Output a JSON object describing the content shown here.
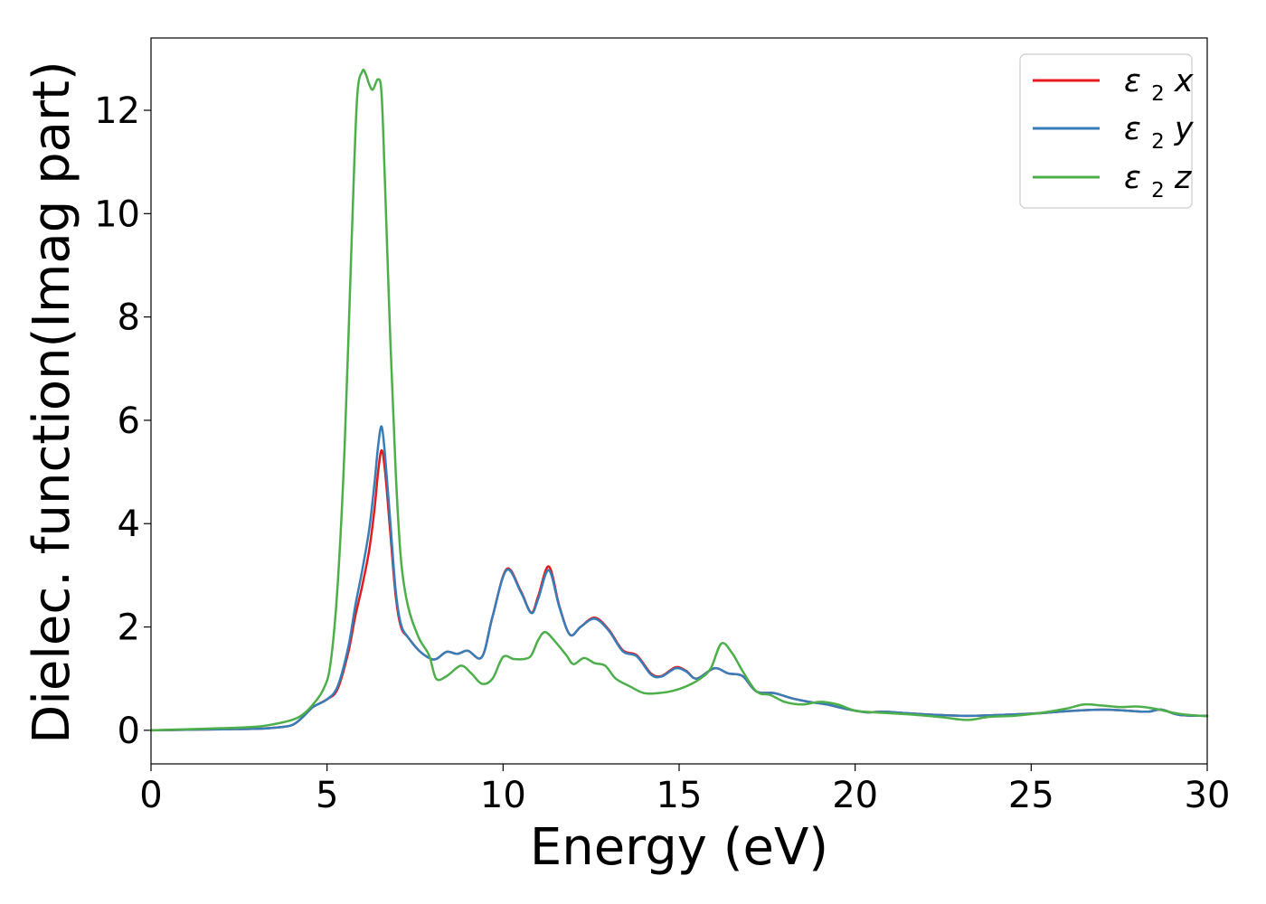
{
  "chart_data": {
    "type": "line",
    "title": "",
    "xlabel": "Energy (eV)",
    "ylabel": "Dielec. function(Imag part)",
    "xlim": [
      0,
      30
    ],
    "ylim": [
      -0.65,
      13.4
    ],
    "xticks": [
      0,
      5,
      10,
      15,
      20,
      25,
      30
    ],
    "yticks": [
      0,
      2,
      4,
      6,
      8,
      10,
      12
    ],
    "xtick_labels": [
      "0",
      "5",
      "10",
      "15",
      "20",
      "25",
      "30"
    ],
    "ytick_labels": [
      "0",
      "2",
      "4",
      "6",
      "8",
      "10",
      "12"
    ],
    "grid": false,
    "legend_position": "top-right",
    "series": [
      {
        "name": "ε2x",
        "legend_main": "ε",
        "legend_sub": "2",
        "legend_suffix": "x",
        "color": "#e41a1c",
        "x": [
          0,
          1,
          2,
          3,
          3.5,
          4,
          4.3,
          4.6,
          5,
          5.3,
          5.6,
          5.8,
          6.0,
          6.2,
          6.35,
          6.45,
          6.55,
          6.65,
          6.8,
          6.95,
          7.1,
          7.3,
          7.6,
          7.9,
          8.1,
          8.4,
          8.7,
          9.0,
          9.4,
          9.7,
          10.1,
          10.5,
          10.8,
          11.0,
          11.3,
          11.6,
          11.9,
          12.2,
          12.6,
          13.0,
          13.4,
          13.8,
          14.2,
          14.5,
          14.9,
          15.2,
          15.5,
          16.0,
          16.4,
          16.8,
          17.2,
          17.7,
          18.2,
          18.7,
          19.2,
          19.7,
          20.3,
          20.8,
          21.5,
          22.3,
          23.2,
          24.2,
          25.2,
          26.0,
          27.0,
          27.7,
          28.3,
          28.7,
          29.2,
          30.0
        ],
        "y": [
          0.0,
          0.01,
          0.02,
          0.03,
          0.05,
          0.1,
          0.25,
          0.45,
          0.6,
          0.8,
          1.5,
          2.2,
          2.8,
          3.5,
          4.3,
          5.0,
          5.42,
          5.0,
          3.8,
          2.6,
          2.0,
          1.8,
          1.55,
          1.4,
          1.38,
          1.52,
          1.48,
          1.54,
          1.42,
          2.2,
          3.12,
          2.7,
          2.28,
          2.6,
          3.17,
          2.4,
          1.85,
          2.0,
          2.18,
          1.95,
          1.55,
          1.45,
          1.1,
          1.05,
          1.22,
          1.15,
          1.0,
          1.2,
          1.1,
          1.05,
          0.75,
          0.72,
          0.62,
          0.55,
          0.5,
          0.42,
          0.35,
          0.36,
          0.33,
          0.3,
          0.28,
          0.3,
          0.33,
          0.37,
          0.4,
          0.38,
          0.36,
          0.4,
          0.3,
          0.28
        ]
      },
      {
        "name": "ε2y",
        "legend_main": "ε",
        "legend_sub": "2",
        "legend_suffix": "y",
        "color": "#377eb8",
        "x": [
          0,
          1,
          2,
          3,
          3.5,
          4,
          4.3,
          4.6,
          5,
          5.3,
          5.6,
          5.8,
          6.0,
          6.2,
          6.35,
          6.45,
          6.55,
          6.65,
          6.8,
          6.95,
          7.1,
          7.3,
          7.6,
          7.9,
          8.1,
          8.4,
          8.7,
          9.0,
          9.4,
          9.7,
          10.1,
          10.5,
          10.8,
          11.0,
          11.3,
          11.6,
          11.9,
          12.2,
          12.6,
          13.0,
          13.4,
          13.8,
          14.2,
          14.5,
          14.9,
          15.2,
          15.5,
          16.0,
          16.4,
          16.8,
          17.2,
          17.7,
          18.2,
          18.7,
          19.2,
          19.7,
          20.3,
          20.8,
          21.5,
          22.3,
          23.2,
          24.2,
          25.2,
          26.0,
          27.0,
          27.7,
          28.3,
          28.7,
          29.2,
          30.0
        ],
        "y": [
          0.0,
          0.01,
          0.02,
          0.03,
          0.05,
          0.1,
          0.25,
          0.45,
          0.6,
          0.85,
          1.6,
          2.4,
          3.1,
          3.9,
          4.8,
          5.5,
          5.88,
          5.3,
          4.0,
          2.7,
          2.05,
          1.8,
          1.55,
          1.4,
          1.38,
          1.52,
          1.48,
          1.54,
          1.42,
          2.2,
          3.1,
          2.68,
          2.27,
          2.55,
          3.1,
          2.38,
          1.85,
          2.0,
          2.16,
          1.93,
          1.53,
          1.43,
          1.08,
          1.04,
          1.2,
          1.14,
          1.0,
          1.2,
          1.1,
          1.05,
          0.75,
          0.72,
          0.62,
          0.55,
          0.5,
          0.42,
          0.35,
          0.36,
          0.33,
          0.3,
          0.28,
          0.3,
          0.33,
          0.37,
          0.4,
          0.38,
          0.36,
          0.4,
          0.3,
          0.28
        ]
      },
      {
        "name": "ε2z",
        "legend_main": "ε",
        "legend_sub": "2",
        "legend_suffix": "z",
        "color": "#4daf4a",
        "x": [
          0,
          1,
          2,
          3,
          3.5,
          4,
          4.3,
          4.6,
          4.9,
          5.1,
          5.3,
          5.5,
          5.7,
          5.85,
          6.0,
          6.1,
          6.2,
          6.3,
          6.45,
          6.55,
          6.65,
          6.8,
          6.95,
          7.1,
          7.3,
          7.6,
          7.9,
          8.1,
          8.4,
          8.8,
          9.1,
          9.4,
          9.7,
          10.0,
          10.3,
          10.6,
          10.8,
          11.0,
          11.2,
          11.5,
          11.8,
          12.0,
          12.3,
          12.6,
          12.9,
          13.2,
          13.6,
          14.0,
          14.4,
          14.8,
          15.2,
          15.6,
          15.9,
          16.2,
          16.5,
          16.8,
          17.2,
          17.6,
          18.0,
          18.5,
          19.0,
          19.5,
          20.0,
          20.5,
          21.0,
          21.7,
          22.5,
          23.2,
          23.8,
          24.5,
          25.2,
          26.0,
          26.5,
          27.0,
          27.5,
          28.0,
          28.5,
          29.2,
          30.0
        ],
        "y": [
          0.0,
          0.02,
          0.04,
          0.07,
          0.12,
          0.2,
          0.3,
          0.5,
          0.8,
          1.3,
          2.8,
          5.5,
          9.5,
          12.2,
          12.75,
          12.7,
          12.5,
          12.4,
          12.6,
          12.3,
          10.5,
          7.5,
          5.0,
          3.3,
          2.4,
          1.8,
          1.45,
          1.0,
          1.05,
          1.25,
          1.1,
          0.9,
          1.0,
          1.42,
          1.38,
          1.38,
          1.45,
          1.75,
          1.9,
          1.7,
          1.45,
          1.28,
          1.4,
          1.3,
          1.25,
          1.0,
          0.85,
          0.72,
          0.72,
          0.76,
          0.85,
          1.0,
          1.2,
          1.68,
          1.5,
          1.15,
          0.75,
          0.68,
          0.55,
          0.5,
          0.55,
          0.5,
          0.38,
          0.35,
          0.33,
          0.3,
          0.25,
          0.2,
          0.26,
          0.28,
          0.33,
          0.42,
          0.5,
          0.48,
          0.45,
          0.46,
          0.42,
          0.32,
          0.27
        ]
      }
    ]
  }
}
